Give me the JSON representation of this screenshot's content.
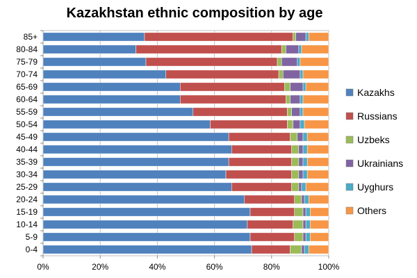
{
  "chart_data": {
    "type": "bar",
    "orientation": "horizontal",
    "stacked": "percent",
    "title": "Kazakhstan  ethnic composition  by age",
    "xlabel": "",
    "ylabel": "",
    "xlim": [
      0,
      100
    ],
    "x_ticks": [
      "0%",
      "20%",
      "40%",
      "60%",
      "80%",
      "100%"
    ],
    "grid": "vertical",
    "legend_position": "right",
    "categories": [
      "85+",
      "80-84",
      "75-79",
      "70-74",
      "65-69",
      "60-64",
      "55-59",
      "50-54",
      "45-49",
      "40-44",
      "35-39",
      "30-34",
      "25-29",
      "20-24",
      "15-19",
      "10-14",
      "5-9",
      "0-4"
    ],
    "series": [
      {
        "name": "Kazakhs",
        "color": "#4F81BD",
        "values": [
          35.5,
          32.5,
          36.0,
          43.0,
          48.0,
          48.0,
          52.5,
          58.5,
          65.0,
          66.0,
          65.0,
          64.0,
          66.0,
          70.5,
          72.5,
          71.5,
          72.5,
          73.0
        ]
      },
      {
        "name": "Russians",
        "color": "#C0504D",
        "values": [
          52.0,
          51.0,
          46.0,
          39.5,
          36.5,
          37.0,
          33.0,
          27.0,
          21.5,
          21.0,
          22.0,
          23.0,
          21.0,
          17.5,
          15.5,
          16.0,
          15.5,
          13.5
        ]
      },
      {
        "name": "Uzbeks",
        "color": "#9BBB59",
        "values": [
          1.0,
          1.5,
          1.5,
          1.5,
          2.0,
          1.5,
          1.5,
          2.0,
          2.5,
          2.5,
          2.5,
          2.5,
          2.5,
          2.5,
          3.0,
          3.5,
          3.0,
          4.0
        ]
      },
      {
        "name": "Ukrainians",
        "color": "#8064A2",
        "values": [
          3.5,
          4.5,
          5.5,
          6.0,
          4.5,
          3.5,
          3.0,
          2.5,
          2.0,
          1.5,
          1.5,
          1.5,
          1.0,
          1.0,
          1.0,
          1.0,
          1.0,
          1.0
        ]
      },
      {
        "name": "Uyghurs",
        "color": "#4BACC6",
        "values": [
          1.0,
          1.0,
          1.0,
          1.0,
          1.0,
          1.0,
          1.0,
          1.5,
          1.5,
          1.5,
          1.5,
          1.5,
          1.5,
          1.5,
          1.5,
          1.5,
          1.5,
          1.5
        ]
      },
      {
        "name": "Others",
        "color": "#F79646",
        "values": [
          7.0,
          9.5,
          10.0,
          9.0,
          8.0,
          9.0,
          9.0,
          8.5,
          7.5,
          7.5,
          7.5,
          7.5,
          8.0,
          7.0,
          6.5,
          6.5,
          6.5,
          7.0
        ]
      }
    ]
  }
}
